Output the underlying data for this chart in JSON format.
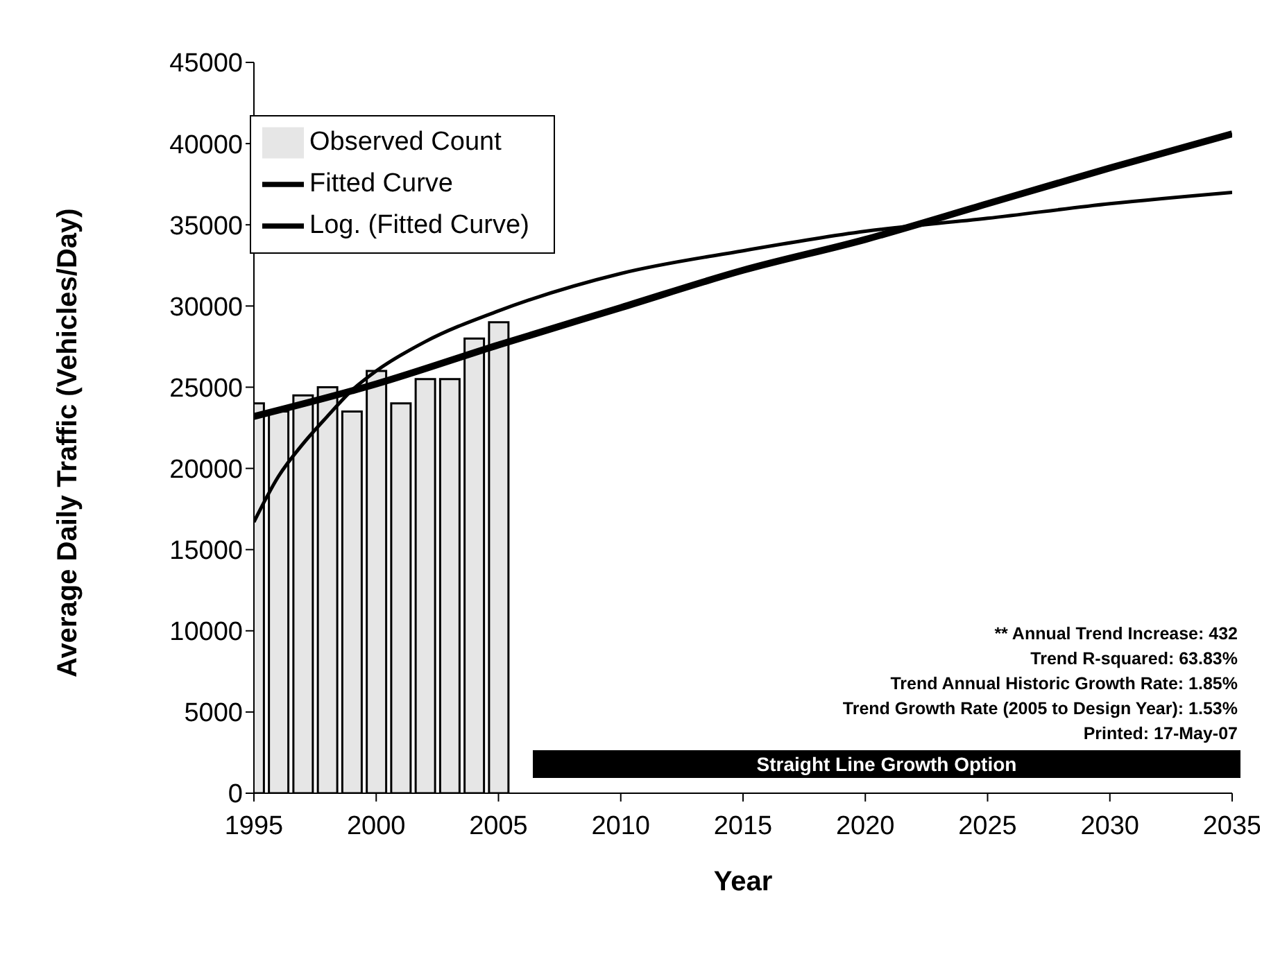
{
  "chart_data": {
    "type": "bar",
    "xlabel": "Year",
    "ylabel": "Average Daily Traffic (Vehicles/Day)",
    "x": [
      1995,
      1996,
      1997,
      1998,
      1999,
      2000,
      2001,
      2002,
      2003,
      2004,
      2005
    ],
    "series": [
      {
        "name": "Observed Count",
        "color": "#e6e6e6",
        "values": [
          24000,
          23500,
          24500,
          25000,
          23500,
          26000,
          24000,
          25500,
          25500,
          28000,
          29000
        ]
      },
      {
        "name": "Fitted Curve",
        "type": "line",
        "color": "#000000",
        "x": [
          1995,
          2000,
          2005,
          2010,
          2015,
          2020,
          2025,
          2030,
          2035
        ],
        "values": [
          23200,
          25200,
          27600,
          29900,
          32200,
          34100,
          36300,
          38500,
          40600
        ]
      },
      {
        "name": "Log. (Fitted Curve)",
        "type": "line",
        "color": "#000000",
        "x": [
          1995,
          1996,
          1997,
          1998,
          1999,
          2000,
          2002,
          2005,
          2010,
          2015,
          2020,
          2025,
          2030,
          2035
        ],
        "values": [
          16700,
          19500,
          21500,
          23200,
          24800,
          26000,
          27800,
          29700,
          32000,
          33400,
          34600,
          35400,
          36300,
          37000
        ]
      }
    ],
    "xlim": [
      1995,
      2035
    ],
    "xticks": [
      1995,
      2000,
      2005,
      2010,
      2015,
      2020,
      2025,
      2030,
      2035
    ],
    "ylim": [
      0,
      45000
    ],
    "yticks": [
      0,
      5000,
      10000,
      15000,
      20000,
      25000,
      30000,
      35000,
      40000,
      45000
    ],
    "grid": false,
    "legend": "top left",
    "marker": "none",
    "annotations": [
      "** Annual Trend Increase: 432",
      "Trend R-squared: 63.83%",
      "Trend Annual Historic Growth Rate: 1.85%",
      "Trend Growth Rate (2005 to Design Year): 1.53%",
      "Printed: 17-May-07",
      "Straight Line Growth Option"
    ]
  }
}
